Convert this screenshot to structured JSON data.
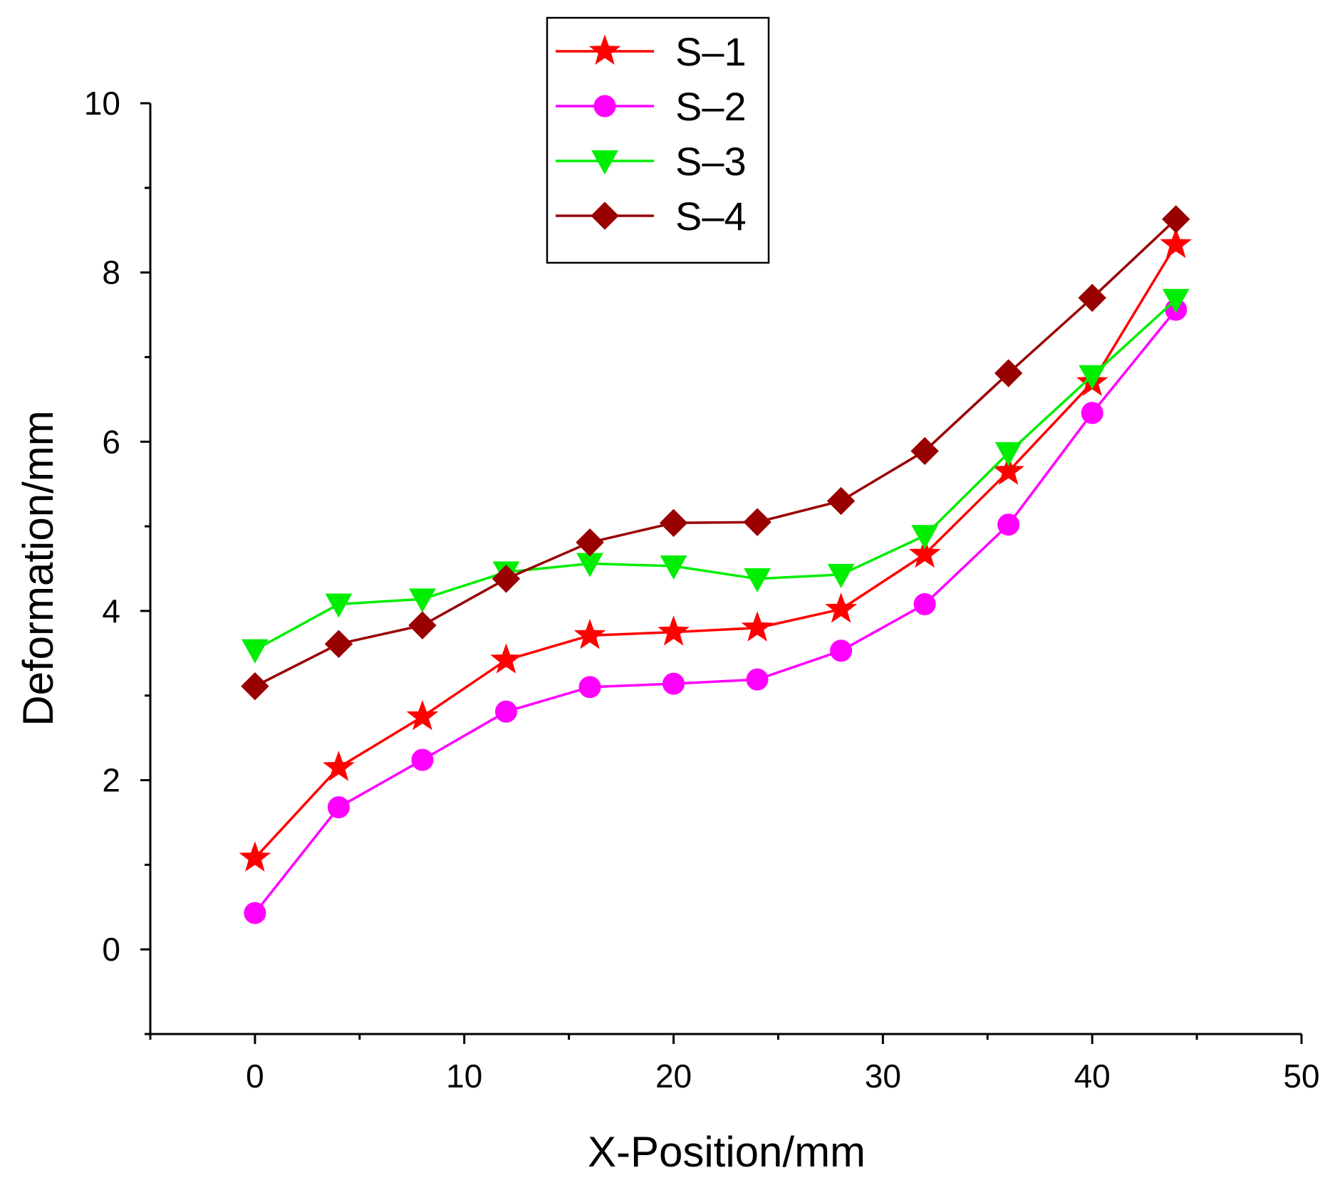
{
  "chart_data": {
    "type": "line",
    "title": "",
    "xlabel": "X-Position/mm",
    "ylabel": "Deformation/mm",
    "xlim": [
      -5,
      50
    ],
    "ylim": [
      -1,
      10
    ],
    "x_ticks": [
      0,
      10,
      20,
      30,
      40,
      50
    ],
    "x_minor_ticks": [
      -5,
      5,
      15,
      25,
      35,
      45
    ],
    "y_ticks": [
      0,
      2,
      4,
      6,
      8,
      10
    ],
    "y_minor_ticks": [
      -1,
      1,
      3,
      5,
      7,
      9
    ],
    "grid": false,
    "legend_position": "top-center",
    "x": [
      0,
      4,
      8,
      12,
      16,
      20,
      24,
      28,
      32,
      36,
      40,
      44
    ],
    "series": [
      {
        "name": "S–1",
        "color": "#ff0000",
        "marker": "star",
        "values": [
          1.08,
          2.15,
          2.75,
          3.42,
          3.71,
          3.75,
          3.8,
          4.02,
          4.67,
          5.65,
          6.7,
          8.33
        ]
      },
      {
        "name": "S–2",
        "color": "#ff00ff",
        "marker": "circle",
        "values": [
          0.43,
          1.68,
          2.24,
          2.81,
          3.1,
          3.14,
          3.19,
          3.53,
          4.08,
          5.02,
          6.34,
          7.56
        ]
      },
      {
        "name": "S–3",
        "color": "#00ee00",
        "marker": "triangle-down",
        "values": [
          3.54,
          4.08,
          4.14,
          4.46,
          4.56,
          4.53,
          4.38,
          4.43,
          4.89,
          5.87,
          6.78,
          7.68
        ]
      },
      {
        "name": "S–4",
        "color": "#990000",
        "marker": "diamond",
        "values": [
          3.11,
          3.61,
          3.83,
          4.38,
          4.81,
          5.04,
          5.05,
          5.3,
          5.89,
          6.81,
          7.7,
          8.63
        ]
      }
    ]
  }
}
